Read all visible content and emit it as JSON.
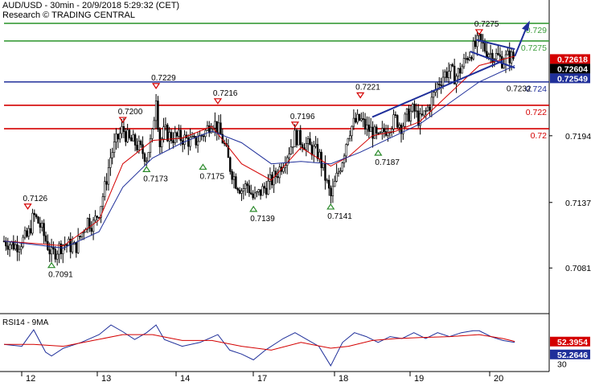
{
  "header": {
    "title": "AUD/USD - 30min - 20/9/2018 5:29:32 (CET)",
    "research": "Research © TRADING CENTRAL"
  },
  "colors": {
    "green_level": "#3a9c3a",
    "red_level": "#d40000",
    "blue_level": "#1f2f9a",
    "price": "#000000",
    "ma_fast": "#d40000",
    "ma_slow": "#1f2f9a",
    "forecast_arrow": "#1f2f9a",
    "pivot_up": "#2a8a2a",
    "pivot_down": "#d40000",
    "rsi": "#1f2f9a",
    "rsi_ma": "#d40000"
  },
  "chart_data": [
    {
      "type": "candlestick",
      "title": "AUD/USD - 30min - 20/9/2018 5:29:32 (CET)",
      "x_tick_labels": [
        "12",
        "13",
        "14",
        "17",
        "18",
        "19",
        "20"
      ],
      "y_tick_labels": [
        "0.7194",
        "0.7137",
        "0.7081"
      ],
      "ylim": [
        0.7042,
        0.731
      ],
      "grid": false,
      "price_path": [
        [
          0,
          0.7104
        ],
        [
          2,
          0.71
        ],
        [
          4,
          0.7108
        ],
        [
          5,
          0.7126
        ],
        [
          6,
          0.7118
        ],
        [
          8,
          0.7092
        ],
        [
          10,
          0.7102
        ],
        [
          12,
          0.7098
        ],
        [
          14,
          0.7122
        ],
        [
          15,
          0.7118
        ],
        [
          16,
          0.713
        ],
        [
          17,
          0.715
        ],
        [
          18,
          0.7178
        ],
        [
          19,
          0.719
        ],
        [
          20,
          0.72
        ],
        [
          21,
          0.719
        ],
        [
          22,
          0.7188
        ],
        [
          24,
          0.7176
        ],
        [
          25,
          0.7195
        ],
        [
          25.6,
          0.7229
        ],
        [
          26.2,
          0.7186
        ],
        [
          27,
          0.7198
        ],
        [
          28,
          0.7193
        ],
        [
          30,
          0.7192
        ],
        [
          32,
          0.7188
        ],
        [
          34,
          0.7198
        ],
        [
          35,
          0.7208
        ],
        [
          36,
          0.72
        ],
        [
          37,
          0.7188
        ],
        [
          38,
          0.7168
        ],
        [
          39,
          0.7155
        ],
        [
          40,
          0.7148
        ],
        [
          41,
          0.7152
        ],
        [
          42,
          0.714
        ],
        [
          43,
          0.7145
        ],
        [
          44,
          0.715
        ],
        [
          45,
          0.7155
        ],
        [
          46,
          0.7162
        ],
        [
          47,
          0.7172
        ],
        [
          48,
          0.7182
        ],
        [
          49,
          0.7194
        ],
        [
          50,
          0.719
        ],
        [
          51,
          0.7186
        ],
        [
          52,
          0.7182
        ],
        [
          53,
          0.7178
        ],
        [
          54,
          0.716
        ],
        [
          55,
          0.7141
        ],
        [
          56,
          0.7158
        ],
        [
          57,
          0.7175
        ],
        [
          58,
          0.7198
        ],
        [
          59,
          0.7205
        ],
        [
          60,
          0.7208
        ],
        [
          61,
          0.72
        ],
        [
          62,
          0.7198
        ],
        [
          63,
          0.719
        ],
        [
          64,
          0.7198
        ],
        [
          65,
          0.7204
        ],
        [
          66,
          0.7208
        ],
        [
          67,
          0.7202
        ],
        [
          68,
          0.7212
        ],
        [
          69,
          0.7216
        ],
        [
          70,
          0.7206
        ],
        [
          71,
          0.7214
        ],
        [
          72,
          0.7224
        ],
        [
          73,
          0.7238
        ],
        [
          74,
          0.7246
        ],
        [
          75,
          0.725
        ],
        [
          76,
          0.7244
        ],
        [
          77,
          0.7252
        ],
        [
          78,
          0.7262
        ],
        [
          79,
          0.7268
        ],
        [
          80,
          0.7275
        ],
        [
          81,
          0.7268
        ],
        [
          82,
          0.7264
        ],
        [
          83,
          0.7262
        ],
        [
          84,
          0.7258
        ],
        [
          85,
          0.7262
        ],
        [
          86,
          0.726
        ]
      ],
      "moving_averages": [
        {
          "name": "",
          "color": "#d40000",
          "values": [
            [
              0,
              0.7104
            ],
            [
              10,
              0.71
            ],
            [
              16,
              0.7122
            ],
            [
              20,
              0.717
            ],
            [
              25,
              0.719
            ],
            [
              30,
              0.7192
            ],
            [
              35,
              0.7202
            ],
            [
              40,
              0.717
            ],
            [
              45,
              0.7156
            ],
            [
              50,
              0.7184
            ],
            [
              55,
              0.7168
            ],
            [
              58,
              0.7176
            ],
            [
              62,
              0.7194
            ],
            [
              66,
              0.7198
            ],
            [
              70,
              0.7206
            ],
            [
              75,
              0.723
            ],
            [
              80,
              0.7254
            ],
            [
              86,
              0.7262
            ]
          ]
        },
        {
          "name": "",
          "color": "#1f2f9a",
          "values": [
            [
              0,
              0.7104
            ],
            [
              10,
              0.7098
            ],
            [
              16,
              0.7112
            ],
            [
              20,
              0.715
            ],
            [
              25,
              0.7175
            ],
            [
              30,
              0.7188
            ],
            [
              35,
              0.7198
            ],
            [
              40,
              0.7188
            ],
            [
              45,
              0.717
            ],
            [
              50,
              0.7172
            ],
            [
              55,
              0.717
            ],
            [
              60,
              0.718
            ],
            [
              65,
              0.7192
            ],
            [
              70,
              0.7204
            ],
            [
              75,
              0.7222
            ],
            [
              80,
              0.724
            ],
            [
              86,
              0.7254
            ]
          ]
        }
      ],
      "horizontal_levels": [
        {
          "value": 0.729,
          "label": "0.729",
          "color": "#3a9c3a"
        },
        {
          "value": 0.7275,
          "label": "0.7275",
          "color": "#3a9c3a"
        },
        {
          "value": 0.724,
          "label": "0.724",
          "color": "#1f2f9a"
        },
        {
          "value": 0.722,
          "label": "0.722",
          "color": "#d40000"
        },
        {
          "value": 0.72,
          "label": "0.72",
          "color": "#d40000"
        }
      ],
      "current_prices": [
        {
          "label": "0.72618",
          "value": 0.72618,
          "bg": "#d40000",
          "fg": "#ffffff"
        },
        {
          "label": "0.72604",
          "value": 0.72604,
          "bg": "#000000",
          "fg": "#ffffff"
        },
        {
          "label": "0.72549",
          "value": 0.72549,
          "bg": "#1f2f9a",
          "fg": "#ffffff"
        }
      ],
      "pivots": [
        {
          "x": 4,
          "value": 0.7126,
          "label": "0.7126",
          "dir": "high"
        },
        {
          "x": 8,
          "value": 0.7091,
          "label": "0.7091",
          "dir": "low"
        },
        {
          "x": 20,
          "value": 0.72,
          "label": "0.7200",
          "dir": "high"
        },
        {
          "x": 24,
          "value": 0.7173,
          "label": "0.7173",
          "dir": "low"
        },
        {
          "x": 25.6,
          "value": 0.7229,
          "label": "0.7229",
          "dir": "high"
        },
        {
          "x": 33.5,
          "value": 0.7175,
          "label": "0.7175",
          "dir": "low"
        },
        {
          "x": 36,
          "value": 0.7216,
          "label": "0.7216",
          "dir": "high"
        },
        {
          "x": 42,
          "value": 0.7139,
          "label": "0.7139",
          "dir": "low"
        },
        {
          "x": 49,
          "value": 0.7196,
          "label": "0.7196",
          "dir": "high"
        },
        {
          "x": 55,
          "value": 0.7141,
          "label": "0.7141",
          "dir": "low"
        },
        {
          "x": 60,
          "value": 0.7221,
          "label": "0.7221",
          "dir": "high"
        },
        {
          "x": 63,
          "value": 0.7187,
          "label": "0.7187",
          "dir": "low"
        },
        {
          "x": 80,
          "value": 0.7275,
          "label": "0.7275",
          "dir": "high"
        }
      ],
      "annotations": [
        {
          "label": "0.7232",
          "x": 80,
          "value": 0.7232
        }
      ],
      "trendlines": [
        {
          "from": [
            62,
            0.721
          ],
          "to": [
            84,
            0.7258
          ]
        },
        {
          "from": [
            79.5,
            0.7276
          ],
          "to": [
            86,
            0.7268
          ]
        },
        {
          "from": [
            78.5,
            0.7266
          ],
          "to": [
            86,
            0.7252
          ]
        }
      ],
      "forecast": {
        "from": [
          86,
          0.7262
        ],
        "to": [
          88,
          0.7291
        ]
      }
    },
    {
      "type": "line",
      "title": "RSI14 - 9MA",
      "ylim": [
        22,
        80
      ],
      "y_tick_labels": [
        "30"
      ],
      "current_values": [
        {
          "label": "52.3954",
          "bg": "#d40000",
          "fg": "#ffffff"
        },
        {
          "label": "52.2646",
          "bg": "#1f2f9a",
          "fg": "#ffffff"
        }
      ],
      "series": [
        {
          "name": "",
          "color": "#1f2f9a",
          "values": [
            [
              0,
              50
            ],
            [
              3,
              48
            ],
            [
              5,
              65
            ],
            [
              7,
              42
            ],
            [
              8,
              38
            ],
            [
              10,
              46
            ],
            [
              13,
              52
            ],
            [
              16,
              60
            ],
            [
              18,
              70
            ],
            [
              20,
              63
            ],
            [
              22,
              55
            ],
            [
              24,
              62
            ],
            [
              25.6,
              70
            ],
            [
              27,
              55
            ],
            [
              30,
              48
            ],
            [
              33,
              52
            ],
            [
              36,
              60
            ],
            [
              38,
              44
            ],
            [
              40,
              40
            ],
            [
              42,
              34
            ],
            [
              44,
              44
            ],
            [
              47,
              56
            ],
            [
              49,
              62
            ],
            [
              51,
              55
            ],
            [
              53,
              48
            ],
            [
              55,
              28
            ],
            [
              57,
              52
            ],
            [
              59,
              62
            ],
            [
              61,
              58
            ],
            [
              63,
              52
            ],
            [
              65,
              58
            ],
            [
              67,
              56
            ],
            [
              69,
              62
            ],
            [
              71,
              56
            ],
            [
              73,
              62
            ],
            [
              75,
              58
            ],
            [
              77,
              62
            ],
            [
              79,
              64
            ],
            [
              80,
              64
            ],
            [
              82,
              58
            ],
            [
              84,
              54
            ],
            [
              86,
              52
            ]
          ]
        },
        {
          "name": "",
          "color": "#d40000",
          "values": [
            [
              0,
              50
            ],
            [
              5,
              50
            ],
            [
              10,
              48
            ],
            [
              15,
              54
            ],
            [
              20,
              60
            ],
            [
              25,
              60
            ],
            [
              30,
              54
            ],
            [
              35,
              54
            ],
            [
              40,
              48
            ],
            [
              45,
              44
            ],
            [
              50,
              52
            ],
            [
              55,
              46
            ],
            [
              58,
              48
            ],
            [
              62,
              54
            ],
            [
              66,
              56
            ],
            [
              70,
              57
            ],
            [
              75,
              58
            ],
            [
              80,
              60
            ],
            [
              84,
              56
            ],
            [
              86,
              53
            ]
          ]
        }
      ]
    }
  ]
}
